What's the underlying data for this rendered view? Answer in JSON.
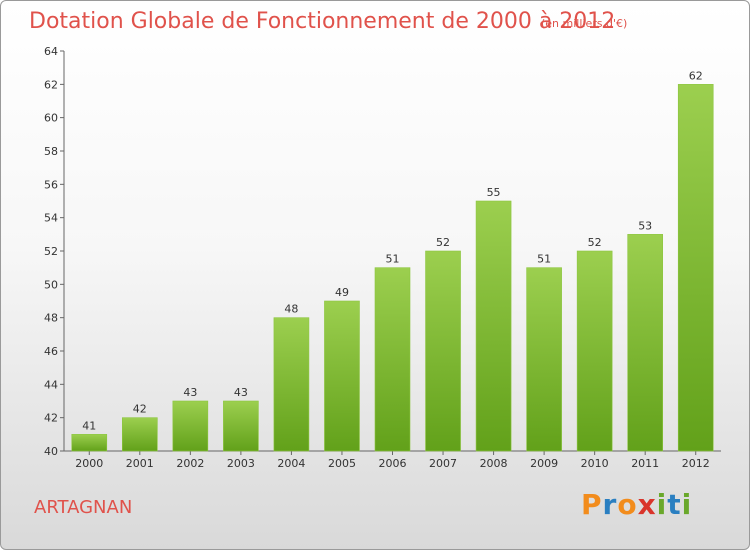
{
  "chart_data": {
    "type": "bar",
    "title": "Dotation Globale de Fonctionnement de 2000 à 2012",
    "subtitle": "(en milliers d'€)",
    "categories": [
      "2000",
      "2001",
      "2002",
      "2003",
      "2004",
      "2005",
      "2006",
      "2007",
      "2008",
      "2009",
      "2010",
      "2011",
      "2012"
    ],
    "values": [
      41,
      42,
      43,
      43,
      48,
      49,
      51,
      52,
      55,
      51,
      52,
      53,
      62
    ],
    "ylim": [
      40,
      64
    ],
    "yticks": [
      40,
      42,
      44,
      46,
      48,
      50,
      52,
      54,
      56,
      58,
      60,
      62,
      64
    ],
    "grid": false,
    "bar_color": "#7ab32e"
  },
  "commune": "ARTAGNAN",
  "logo": {
    "letters": [
      "P",
      "r",
      "o",
      "x",
      "i",
      "t",
      "i"
    ],
    "colors": [
      "#f28c1c",
      "#2a7fc1",
      "#f28c1c",
      "#d9342b",
      "#6aa82b",
      "#2a7fc1",
      "#6aa82b"
    ]
  }
}
